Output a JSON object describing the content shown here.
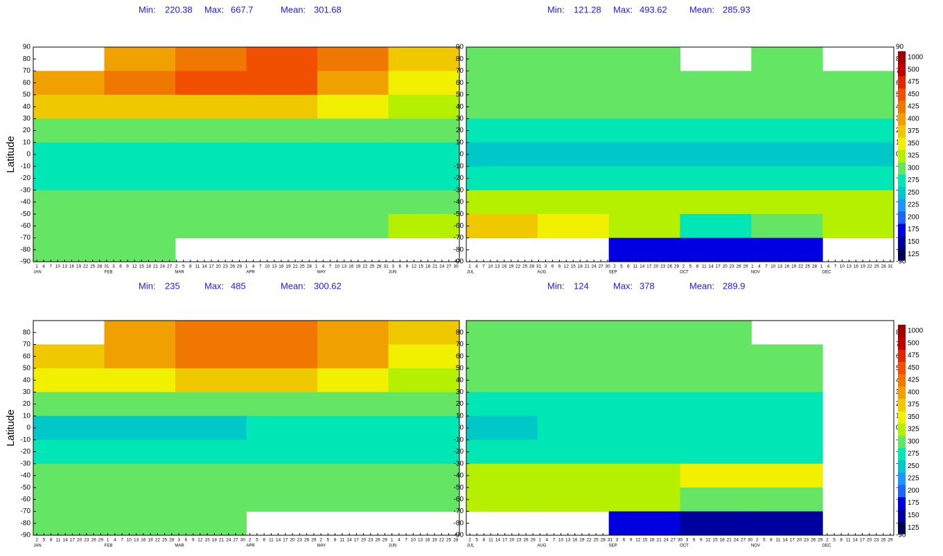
{
  "colorbar": {
    "levels": [
      125,
      150,
      175,
      200,
      225,
      250,
      275,
      300,
      325,
      350,
      375,
      400,
      425,
      450,
      475,
      500,
      1000
    ],
    "colors": [
      "#000050",
      "#0000a0",
      "#0000e0",
      "#1e64ff",
      "#1e96ff",
      "#00c8c8",
      "#00e6b4",
      "#64e664",
      "#b4f000",
      "#f0f000",
      "#f0c800",
      "#f0a000",
      "#f07800",
      "#f05000",
      "#e02800",
      "#c00000",
      "#a00000"
    ]
  },
  "chart_data": [
    {
      "type": "heatmap",
      "ylabel": "Latitude",
      "stats": [
        {
          "label": "Min:",
          "value": 220.38
        },
        {
          "label": "Max:",
          "value": 667.7
        },
        {
          "label": "Mean:",
          "value": 301.68
        }
      ],
      "months": [
        "JAN",
        "FEB",
        "MAR",
        "APR",
        "MAY",
        "JUN"
      ],
      "day_ticks": [
        1,
        4,
        7,
        10,
        13,
        16,
        19,
        22,
        25,
        28,
        31,
        3,
        6,
        9,
        12,
        15,
        18,
        21,
        24,
        27,
        2,
        5,
        8,
        11,
        14,
        17,
        20,
        23,
        26,
        29,
        1,
        4,
        7,
        10,
        13,
        16,
        19,
        22,
        25,
        28,
        1,
        4,
        7,
        10,
        13,
        16,
        19,
        22,
        25,
        28,
        31,
        3,
        6,
        9,
        12,
        15,
        18,
        21,
        24,
        27,
        30
      ],
      "ylim": [
        -90,
        90
      ],
      "yticks": [
        90,
        80,
        70,
        60,
        50,
        40,
        30,
        20,
        10,
        0,
        -10,
        -20,
        -30,
        -40,
        -50,
        -60,
        -70,
        -80,
        -90
      ],
      "y": [
        80,
        60,
        40,
        20,
        0,
        -20,
        -40,
        -60,
        -80
      ],
      "values": [
        [
          null,
          400,
          425,
          450,
          425,
          375
        ],
        [
          400,
          425,
          450,
          450,
          400,
          350
        ],
        [
          375,
          375,
          375,
          375,
          350,
          325
        ],
        [
          300,
          300,
          300,
          300,
          300,
          300
        ],
        [
          275,
          275,
          275,
          275,
          275,
          275
        ],
        [
          275,
          275,
          275,
          275,
          275,
          275
        ],
        [
          300,
          300,
          300,
          300,
          300,
          300
        ],
        [
          300,
          300,
          300,
          300,
          300,
          325
        ],
        [
          300,
          300,
          null,
          null,
          null,
          null
        ]
      ]
    },
    {
      "type": "heatmap",
      "stats": [
        {
          "label": "Min:",
          "value": 121.28
        },
        {
          "label": "Max:",
          "value": 493.62
        },
        {
          "label": "Mean:",
          "value": 285.93
        }
      ],
      "months": [
        "JUL",
        "AUG",
        "SEP",
        "OCT",
        "NOV",
        "DEC"
      ],
      "day_ticks": [
        1,
        4,
        7,
        10,
        13,
        16,
        19,
        22,
        25,
        28,
        31,
        3,
        6,
        9,
        12,
        15,
        18,
        21,
        24,
        27,
        30,
        2,
        5,
        8,
        11,
        14,
        17,
        20,
        23,
        26,
        29,
        2,
        5,
        8,
        11,
        14,
        17,
        20,
        23,
        26,
        29,
        1,
        4,
        7,
        10,
        13,
        16,
        19,
        22,
        25,
        28,
        1,
        4,
        7,
        10,
        13,
        16,
        19,
        22,
        25,
        28,
        31
      ],
      "ylim": [
        -90,
        90
      ],
      "yticks": [
        90,
        80,
        70,
        60,
        50,
        40,
        30,
        20,
        10,
        0,
        -10,
        -20,
        -30,
        -40,
        -50,
        -60,
        -70,
        -80,
        -90
      ],
      "y": [
        80,
        60,
        40,
        20,
        0,
        -20,
        -40,
        -60,
        -80
      ],
      "values": [
        [
          300,
          300,
          300,
          null,
          300,
          null
        ],
        [
          300,
          300,
          300,
          300,
          300,
          300
        ],
        [
          300,
          300,
          300,
          300,
          300,
          300
        ],
        [
          275,
          275,
          275,
          275,
          275,
          275
        ],
        [
          250,
          250,
          250,
          250,
          250,
          250
        ],
        [
          275,
          275,
          275,
          275,
          275,
          275
        ],
        [
          325,
          325,
          325,
          325,
          325,
          325
        ],
        [
          375,
          350,
          325,
          275,
          300,
          325
        ],
        [
          null,
          null,
          175,
          175,
          175,
          null
        ]
      ]
    },
    {
      "type": "heatmap",
      "ylabel": "Latitude",
      "stats": [
        {
          "label": "Min:",
          "value": 235
        },
        {
          "label": "Max:",
          "value": 485
        },
        {
          "label": "Mean:",
          "value": 300.62
        }
      ],
      "months": [
        "JAN",
        "FEB",
        "MAR",
        "APR",
        "MAY",
        "JUN"
      ],
      "day_ticks": [
        2,
        5,
        8,
        11,
        14,
        17,
        20,
        23,
        26,
        29,
        1,
        4,
        7,
        10,
        13,
        16,
        19,
        22,
        25,
        28,
        3,
        6,
        9,
        12,
        15,
        18,
        21,
        24,
        27,
        30,
        2,
        5,
        8,
        11,
        14,
        17,
        20,
        23,
        26,
        29,
        2,
        5,
        8,
        11,
        14,
        17,
        20,
        23,
        26,
        29,
        1,
        4,
        7,
        10,
        13,
        16,
        19,
        22,
        25,
        28
      ],
      "ylim": [
        -90,
        90
      ],
      "yticks": [
        80,
        70,
        60,
        50,
        40,
        30,
        20,
        10,
        0,
        -10,
        -20,
        -30,
        -40,
        -50,
        -60,
        -70,
        -80,
        -90
      ],
      "y": [
        80,
        60,
        40,
        20,
        0,
        -20,
        -40,
        -60,
        -80
      ],
      "values": [
        [
          null,
          400,
          425,
          425,
          400,
          375
        ],
        [
          375,
          400,
          425,
          425,
          400,
          350
        ],
        [
          350,
          350,
          375,
          375,
          350,
          325
        ],
        [
          300,
          300,
          300,
          300,
          300,
          300
        ],
        [
          250,
          250,
          250,
          275,
          275,
          275
        ],
        [
          275,
          275,
          275,
          275,
          275,
          275
        ],
        [
          300,
          300,
          300,
          300,
          300,
          300
        ],
        [
          300,
          300,
          300,
          300,
          300,
          300
        ],
        [
          300,
          300,
          300,
          null,
          null,
          null
        ]
      ]
    },
    {
      "type": "heatmap",
      "stats": [
        {
          "label": "Min:",
          "value": 124
        },
        {
          "label": "Max:",
          "value": 378
        },
        {
          "label": "Mean:",
          "value": 289.9
        }
      ],
      "months": [
        "JUL",
        "AUG",
        "SEP",
        "OCT",
        "NOV",
        "DEC"
      ],
      "day_ticks": [
        2,
        5,
        8,
        11,
        14,
        17,
        20,
        23,
        26,
        29,
        1,
        4,
        7,
        10,
        13,
        16,
        19,
        22,
        25,
        28,
        31,
        3,
        6,
        9,
        12,
        15,
        18,
        21,
        24,
        27,
        30,
        3,
        6,
        9,
        12,
        15,
        18,
        21,
        24,
        27,
        30,
        2,
        5,
        8,
        11,
        14,
        17,
        20,
        23,
        26,
        29,
        2,
        5,
        8,
        11,
        14,
        17,
        20,
        23,
        26,
        29
      ],
      "ylim": [
        -90,
        90
      ],
      "yticks": [
        80,
        70,
        60,
        50,
        40,
        30,
        20,
        10,
        0,
        -10,
        -20,
        -30,
        -40,
        -50,
        -60,
        -70,
        -80,
        -90
      ],
      "y": [
        80,
        60,
        40,
        20,
        0,
        -20,
        -40,
        -60,
        -80
      ],
      "values": [
        [
          300,
          300,
          300,
          300,
          null,
          null
        ],
        [
          300,
          300,
          300,
          300,
          300,
          null
        ],
        [
          300,
          300,
          300,
          300,
          300,
          null
        ],
        [
          275,
          275,
          275,
          275,
          275,
          null
        ],
        [
          250,
          275,
          275,
          275,
          275,
          null
        ],
        [
          275,
          275,
          275,
          275,
          275,
          null
        ],
        [
          325,
          325,
          325,
          350,
          350,
          null
        ],
        [
          325,
          325,
          325,
          300,
          300,
          null
        ],
        [
          null,
          null,
          175,
          150,
          150,
          null
        ]
      ]
    }
  ]
}
